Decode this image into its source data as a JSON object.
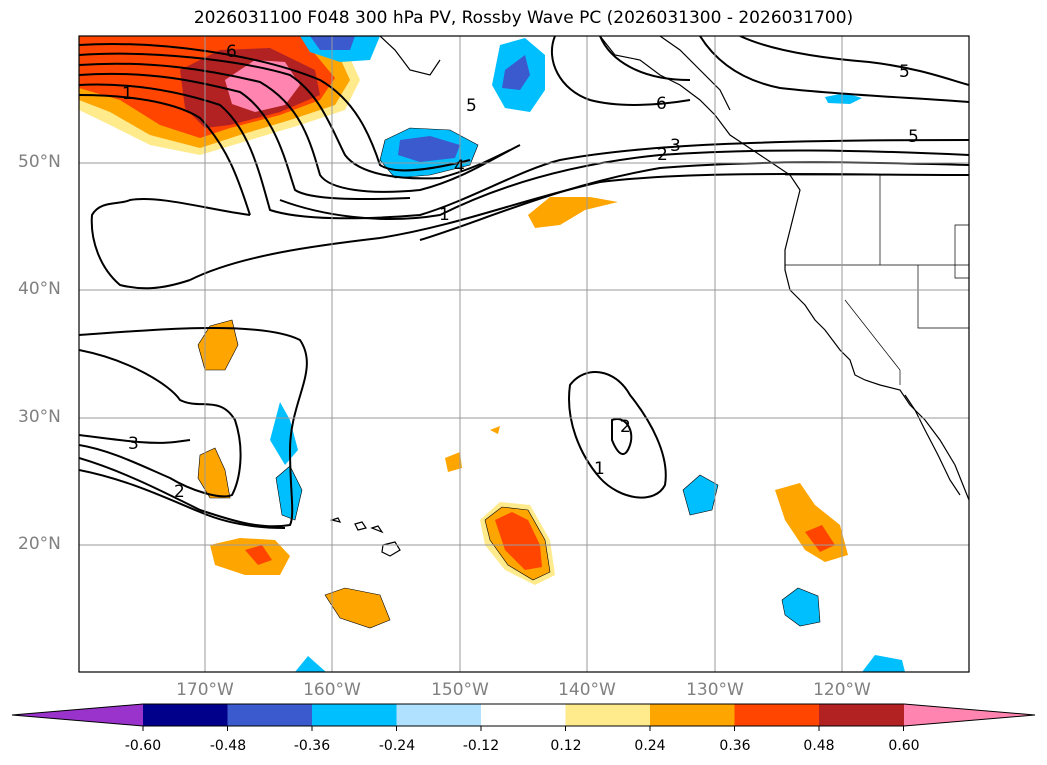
{
  "title": "2026031100 F048 300 hPa PV, Rossby Wave PC (2026031300 - 2026031700)",
  "lat_labels": [
    "50°N",
    "40°N",
    "30°N",
    "20°N"
  ],
  "lon_labels": [
    "170°W",
    "160°W",
    "150°W",
    "140°W",
    "130°W",
    "120°W"
  ],
  "contour_labels": [
    "6",
    "1",
    "5",
    "4",
    "1",
    "6",
    "3",
    "2",
    "5",
    "5",
    "3",
    "2",
    "2",
    "1"
  ],
  "colorbar": {
    "colors": [
      "#9933cc",
      "#00008b",
      "#3a5acd",
      "#00bfff",
      "#b0e2ff",
      "#ffffff",
      "#ffea8c",
      "#ffa500",
      "#ff4500",
      "#b22222",
      "#ff85b0",
      "#ff85b0"
    ],
    "tick_labels": [
      "-0.60",
      "-0.48",
      "-0.36",
      "-0.24",
      "-0.12",
      "0.12",
      "0.24",
      "0.36",
      "0.48",
      "0.60"
    ]
  }
}
